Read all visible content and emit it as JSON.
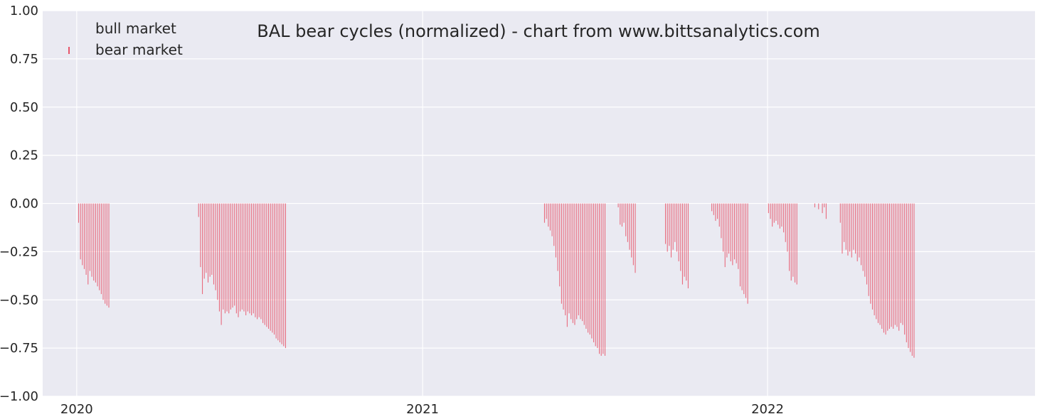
{
  "chart_data": {
    "type": "bar",
    "title": "BAL bear cycles (normalized)  - chart from www.bittsanalytics.com",
    "xlabel": "",
    "ylabel": "",
    "x_range": [
      "2019-11-26",
      "2022-10-11"
    ],
    "ylim": [
      -1.0,
      1.0
    ],
    "y_ticks": [
      1.0,
      0.75,
      0.5,
      0.25,
      0.0,
      -0.25,
      -0.5,
      -0.75,
      -1.0
    ],
    "y_tick_labels": [
      "1.00",
      "0.75",
      "0.50",
      "0.25",
      "0.00",
      "−0.25",
      "−0.50",
      "−0.75",
      "−1.00"
    ],
    "x_ticks": [
      "2020-01-01",
      "2021-01-01",
      "2022-01-01"
    ],
    "x_tick_labels": [
      "2020",
      "2021",
      "2022"
    ],
    "grid": true,
    "legend": {
      "placement": "top-left",
      "entries": [
        "bull market",
        "bear market"
      ]
    },
    "colors": {
      "bull": "#4caf50",
      "bear": "#e8556a",
      "background": "#eaeaf2",
      "grid": "#ffffff"
    },
    "series": [
      {
        "name": "bull market",
        "points": []
      },
      {
        "name": "bear market",
        "points": [
          {
            "x": "2020-01-03",
            "y": -0.1
          },
          {
            "x": "2020-01-05",
            "y": -0.29
          },
          {
            "x": "2020-01-07",
            "y": -0.32
          },
          {
            "x": "2020-01-09",
            "y": -0.34
          },
          {
            "x": "2020-01-11",
            "y": -0.37
          },
          {
            "x": "2020-01-13",
            "y": -0.42
          },
          {
            "x": "2020-01-15",
            "y": -0.35
          },
          {
            "x": "2020-01-17",
            "y": -0.38
          },
          {
            "x": "2020-01-19",
            "y": -0.4
          },
          {
            "x": "2020-01-21",
            "y": -0.41
          },
          {
            "x": "2020-01-23",
            "y": -0.43
          },
          {
            "x": "2020-01-25",
            "y": -0.45
          },
          {
            "x": "2020-01-27",
            "y": -0.47
          },
          {
            "x": "2020-01-29",
            "y": -0.5
          },
          {
            "x": "2020-01-31",
            "y": -0.52
          },
          {
            "x": "2020-02-02",
            "y": -0.53
          },
          {
            "x": "2020-02-04",
            "y": -0.54
          },
          {
            "x": "2020-05-09",
            "y": -0.07
          },
          {
            "x": "2020-05-11",
            "y": -0.33
          },
          {
            "x": "2020-05-13",
            "y": -0.47
          },
          {
            "x": "2020-05-15",
            "y": -0.39
          },
          {
            "x": "2020-05-17",
            "y": -0.36
          },
          {
            "x": "2020-05-19",
            "y": -0.41
          },
          {
            "x": "2020-05-21",
            "y": -0.38
          },
          {
            "x": "2020-05-23",
            "y": -0.37
          },
          {
            "x": "2020-05-25",
            "y": -0.42
          },
          {
            "x": "2020-05-27",
            "y": -0.45
          },
          {
            "x": "2020-05-29",
            "y": -0.5
          },
          {
            "x": "2020-05-31",
            "y": -0.56
          },
          {
            "x": "2020-06-02",
            "y": -0.63
          },
          {
            "x": "2020-06-04",
            "y": -0.55
          },
          {
            "x": "2020-06-06",
            "y": -0.57
          },
          {
            "x": "2020-06-08",
            "y": -0.56
          },
          {
            "x": "2020-06-10",
            "y": -0.57
          },
          {
            "x": "2020-06-12",
            "y": -0.55
          },
          {
            "x": "2020-06-14",
            "y": -0.54
          },
          {
            "x": "2020-06-16",
            "y": -0.53
          },
          {
            "x": "2020-06-18",
            "y": -0.57
          },
          {
            "x": "2020-06-20",
            "y": -0.59
          },
          {
            "x": "2020-06-22",
            "y": -0.56
          },
          {
            "x": "2020-06-24",
            "y": -0.55
          },
          {
            "x": "2020-06-26",
            "y": -0.56
          },
          {
            "x": "2020-06-28",
            "y": -0.58
          },
          {
            "x": "2020-06-30",
            "y": -0.56
          },
          {
            "x": "2020-07-02",
            "y": -0.57
          },
          {
            "x": "2020-07-04",
            "y": -0.58
          },
          {
            "x": "2020-07-06",
            "y": -0.57
          },
          {
            "x": "2020-07-08",
            "y": -0.59
          },
          {
            "x": "2020-07-10",
            "y": -0.6
          },
          {
            "x": "2020-07-12",
            "y": -0.59
          },
          {
            "x": "2020-07-14",
            "y": -0.6
          },
          {
            "x": "2020-07-16",
            "y": -0.62
          },
          {
            "x": "2020-07-18",
            "y": -0.63
          },
          {
            "x": "2020-07-20",
            "y": -0.64
          },
          {
            "x": "2020-07-22",
            "y": -0.65
          },
          {
            "x": "2020-07-24",
            "y": -0.66
          },
          {
            "x": "2020-07-26",
            "y": -0.67
          },
          {
            "x": "2020-07-28",
            "y": -0.68
          },
          {
            "x": "2020-07-30",
            "y": -0.7
          },
          {
            "x": "2020-08-01",
            "y": -0.71
          },
          {
            "x": "2020-08-03",
            "y": -0.72
          },
          {
            "x": "2020-08-05",
            "y": -0.73
          },
          {
            "x": "2020-08-07",
            "y": -0.74
          },
          {
            "x": "2020-08-09",
            "y": -0.75
          },
          {
            "x": "2021-05-10",
            "y": -0.1
          },
          {
            "x": "2021-05-12",
            "y": -0.08
          },
          {
            "x": "2021-05-14",
            "y": -0.12
          },
          {
            "x": "2021-05-16",
            "y": -0.14
          },
          {
            "x": "2021-05-18",
            "y": -0.17
          },
          {
            "x": "2021-05-20",
            "y": -0.22
          },
          {
            "x": "2021-05-22",
            "y": -0.28
          },
          {
            "x": "2021-05-24",
            "y": -0.35
          },
          {
            "x": "2021-05-26",
            "y": -0.43
          },
          {
            "x": "2021-05-28",
            "y": -0.52
          },
          {
            "x": "2021-05-30",
            "y": -0.55
          },
          {
            "x": "2021-06-01",
            "y": -0.58
          },
          {
            "x": "2021-06-03",
            "y": -0.64
          },
          {
            "x": "2021-06-05",
            "y": -0.57
          },
          {
            "x": "2021-06-07",
            "y": -0.6
          },
          {
            "x": "2021-06-09",
            "y": -0.62
          },
          {
            "x": "2021-06-11",
            "y": -0.63
          },
          {
            "x": "2021-06-13",
            "y": -0.6
          },
          {
            "x": "2021-06-15",
            "y": -0.58
          },
          {
            "x": "2021-06-17",
            "y": -0.6
          },
          {
            "x": "2021-06-19",
            "y": -0.61
          },
          {
            "x": "2021-06-21",
            "y": -0.63
          },
          {
            "x": "2021-06-23",
            "y": -0.65
          },
          {
            "x": "2021-06-25",
            "y": -0.67
          },
          {
            "x": "2021-06-27",
            "y": -0.68
          },
          {
            "x": "2021-06-29",
            "y": -0.7
          },
          {
            "x": "2021-07-01",
            "y": -0.72
          },
          {
            "x": "2021-07-03",
            "y": -0.74
          },
          {
            "x": "2021-07-05",
            "y": -0.75
          },
          {
            "x": "2021-07-07",
            "y": -0.78
          },
          {
            "x": "2021-07-09",
            "y": -0.79
          },
          {
            "x": "2021-07-11",
            "y": -0.78
          },
          {
            "x": "2021-07-13",
            "y": -0.79
          },
          {
            "x": "2021-07-27",
            "y": -0.02
          },
          {
            "x": "2021-07-29",
            "y": -0.11
          },
          {
            "x": "2021-07-31",
            "y": -0.12
          },
          {
            "x": "2021-08-02",
            "y": -0.1
          },
          {
            "x": "2021-08-04",
            "y": -0.17
          },
          {
            "x": "2021-08-06",
            "y": -0.2
          },
          {
            "x": "2021-08-08",
            "y": -0.24
          },
          {
            "x": "2021-08-10",
            "y": -0.28
          },
          {
            "x": "2021-08-12",
            "y": -0.32
          },
          {
            "x": "2021-08-14",
            "y": -0.36
          },
          {
            "x": "2021-09-15",
            "y": -0.21
          },
          {
            "x": "2021-09-17",
            "y": -0.25
          },
          {
            "x": "2021-09-19",
            "y": -0.22
          },
          {
            "x": "2021-09-21",
            "y": -0.28
          },
          {
            "x": "2021-09-23",
            "y": -0.24
          },
          {
            "x": "2021-09-25",
            "y": -0.2
          },
          {
            "x": "2021-09-27",
            "y": -0.25
          },
          {
            "x": "2021-09-29",
            "y": -0.3
          },
          {
            "x": "2021-10-01",
            "y": -0.35
          },
          {
            "x": "2021-10-03",
            "y": -0.42
          },
          {
            "x": "2021-10-05",
            "y": -0.38
          },
          {
            "x": "2021-10-07",
            "y": -0.4
          },
          {
            "x": "2021-10-09",
            "y": -0.44
          },
          {
            "x": "2021-11-03",
            "y": -0.04
          },
          {
            "x": "2021-11-05",
            "y": -0.06
          },
          {
            "x": "2021-11-07",
            "y": -0.09
          },
          {
            "x": "2021-11-09",
            "y": -0.08
          },
          {
            "x": "2021-11-11",
            "y": -0.12
          },
          {
            "x": "2021-11-13",
            "y": -0.18
          },
          {
            "x": "2021-11-15",
            "y": -0.25
          },
          {
            "x": "2021-11-17",
            "y": -0.33
          },
          {
            "x": "2021-11-19",
            "y": -0.28
          },
          {
            "x": "2021-11-21",
            "y": -0.26
          },
          {
            "x": "2021-11-23",
            "y": -0.3
          },
          {
            "x": "2021-11-25",
            "y": -0.32
          },
          {
            "x": "2021-11-27",
            "y": -0.29
          },
          {
            "x": "2021-11-29",
            "y": -0.31
          },
          {
            "x": "2021-12-01",
            "y": -0.34
          },
          {
            "x": "2021-12-03",
            "y": -0.43
          },
          {
            "x": "2021-12-05",
            "y": -0.45
          },
          {
            "x": "2021-12-07",
            "y": -0.47
          },
          {
            "x": "2021-12-09",
            "y": -0.49
          },
          {
            "x": "2021-12-11",
            "y": -0.52
          },
          {
            "x": "2022-01-02",
            "y": -0.05
          },
          {
            "x": "2022-01-04",
            "y": -0.08
          },
          {
            "x": "2022-01-06",
            "y": -0.12
          },
          {
            "x": "2022-01-08",
            "y": -0.1
          },
          {
            "x": "2022-01-10",
            "y": -0.09
          },
          {
            "x": "2022-01-12",
            "y": -0.11
          },
          {
            "x": "2022-01-14",
            "y": -0.13
          },
          {
            "x": "2022-01-16",
            "y": -0.12
          },
          {
            "x": "2022-01-18",
            "y": -0.15
          },
          {
            "x": "2022-01-20",
            "y": -0.2
          },
          {
            "x": "2022-01-22",
            "y": -0.25
          },
          {
            "x": "2022-01-24",
            "y": -0.35
          },
          {
            "x": "2022-01-26",
            "y": -0.4
          },
          {
            "x": "2022-01-28",
            "y": -0.38
          },
          {
            "x": "2022-01-30",
            "y": -0.41
          },
          {
            "x": "2022-02-01",
            "y": -0.42
          },
          {
            "x": "2022-02-20",
            "y": -0.02
          },
          {
            "x": "2022-02-24",
            "y": -0.03
          },
          {
            "x": "2022-02-28",
            "y": -0.05
          },
          {
            "x": "2022-03-02",
            "y": -0.02
          },
          {
            "x": "2022-03-04",
            "y": -0.08
          },
          {
            "x": "2022-03-19",
            "y": -0.1
          },
          {
            "x": "2022-03-21",
            "y": -0.26
          },
          {
            "x": "2022-03-23",
            "y": -0.2
          },
          {
            "x": "2022-03-25",
            "y": -0.24
          },
          {
            "x": "2022-03-27",
            "y": -0.27
          },
          {
            "x": "2022-03-29",
            "y": -0.25
          },
          {
            "x": "2022-03-31",
            "y": -0.28
          },
          {
            "x": "2022-04-02",
            "y": -0.24
          },
          {
            "x": "2022-04-04",
            "y": -0.26
          },
          {
            "x": "2022-04-06",
            "y": -0.3
          },
          {
            "x": "2022-04-08",
            "y": -0.28
          },
          {
            "x": "2022-04-10",
            "y": -0.32
          },
          {
            "x": "2022-04-12",
            "y": -0.35
          },
          {
            "x": "2022-04-14",
            "y": -0.38
          },
          {
            "x": "2022-04-16",
            "y": -0.42
          },
          {
            "x": "2022-04-18",
            "y": -0.48
          },
          {
            "x": "2022-04-20",
            "y": -0.52
          },
          {
            "x": "2022-04-22",
            "y": -0.55
          },
          {
            "x": "2022-04-24",
            "y": -0.58
          },
          {
            "x": "2022-04-26",
            "y": -0.6
          },
          {
            "x": "2022-04-28",
            "y": -0.62
          },
          {
            "x": "2022-04-30",
            "y": -0.63
          },
          {
            "x": "2022-05-02",
            "y": -0.65
          },
          {
            "x": "2022-05-04",
            "y": -0.67
          },
          {
            "x": "2022-05-06",
            "y": -0.68
          },
          {
            "x": "2022-05-08",
            "y": -0.66
          },
          {
            "x": "2022-05-10",
            "y": -0.65
          },
          {
            "x": "2022-05-12",
            "y": -0.64
          },
          {
            "x": "2022-05-14",
            "y": -0.65
          },
          {
            "x": "2022-05-16",
            "y": -0.63
          },
          {
            "x": "2022-05-18",
            "y": -0.64
          },
          {
            "x": "2022-05-20",
            "y": -0.66
          },
          {
            "x": "2022-05-22",
            "y": -0.62
          },
          {
            "x": "2022-05-24",
            "y": -0.63
          },
          {
            "x": "2022-05-26",
            "y": -0.68
          },
          {
            "x": "2022-05-28",
            "y": -0.72
          },
          {
            "x": "2022-05-30",
            "y": -0.75
          },
          {
            "x": "2022-06-01",
            "y": -0.77
          },
          {
            "x": "2022-06-03",
            "y": -0.79
          },
          {
            "x": "2022-06-05",
            "y": -0.8
          }
        ]
      }
    ]
  }
}
